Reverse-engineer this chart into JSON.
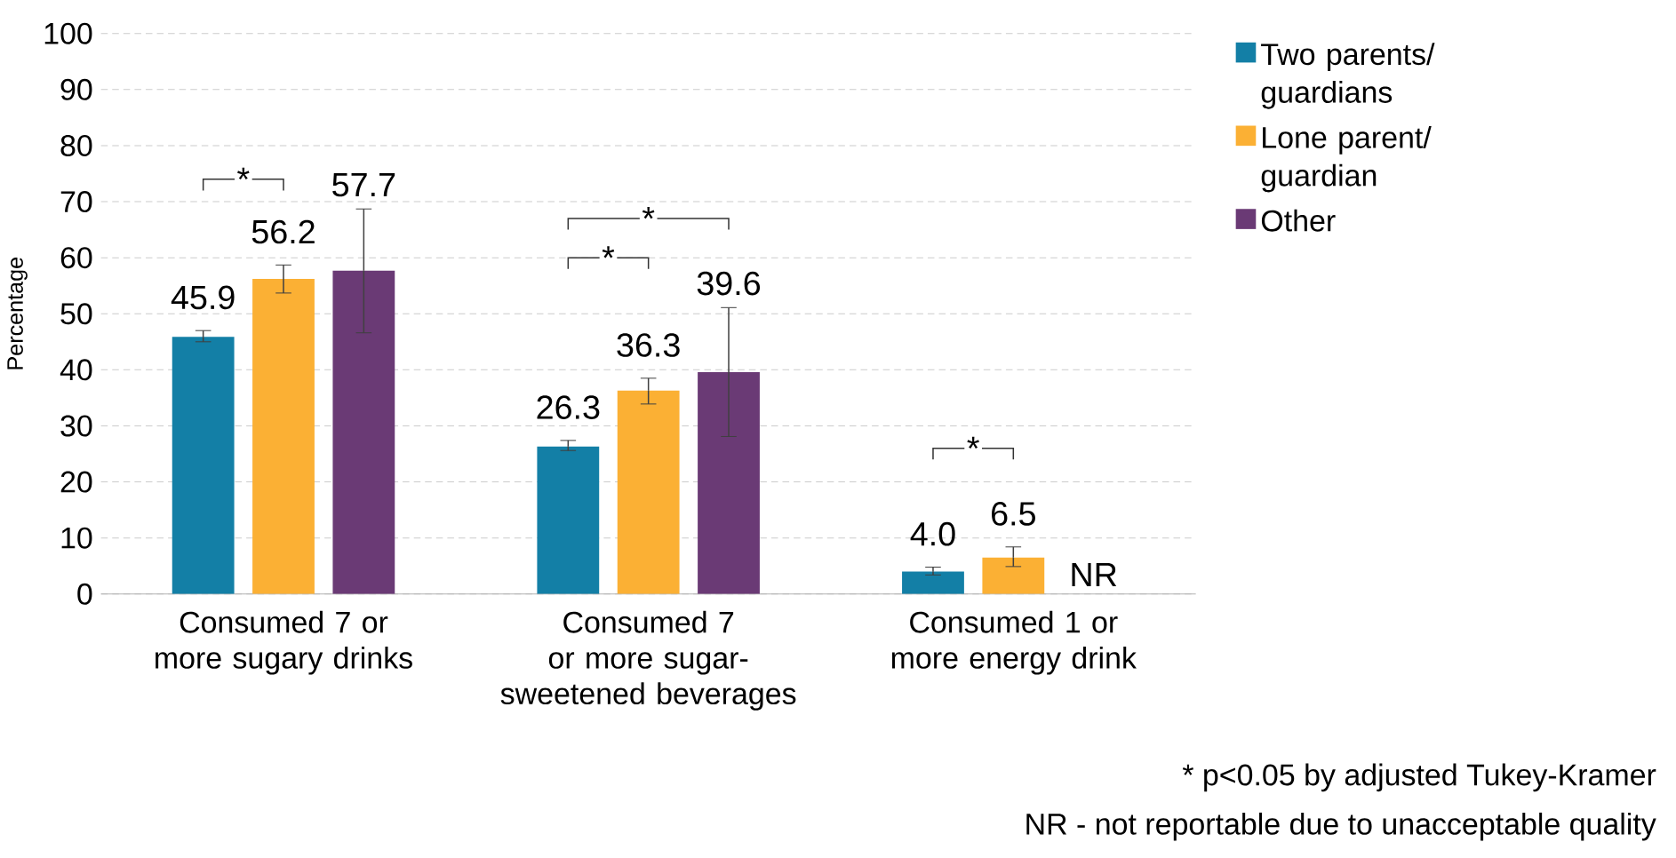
{
  "chart_data": {
    "type": "bar",
    "ylabel": "Percentage",
    "categories": [
      "Consumed 7 or more sugary drinks",
      "Consumed 7 or more sugar-sweetened beverages",
      "Consumed 1 or more energy drink"
    ],
    "series": [
      {
        "name": "Two parents/ guardians",
        "color": "#137fa6",
        "values": [
          45.9,
          26.3,
          4.0
        ],
        "errors": [
          [
            45.0,
            47.0
          ],
          [
            25.6,
            27.4
          ],
          [
            3.4,
            4.8
          ]
        ],
        "value_labels": [
          "45.9",
          "26.3",
          "4.0"
        ]
      },
      {
        "name": "Lone parent/ guardian",
        "color": "#fbb034",
        "values": [
          56.2,
          36.3,
          6.5
        ],
        "errors": [
          [
            53.7,
            58.7
          ],
          [
            33.9,
            38.5
          ],
          [
            4.9,
            8.4
          ]
        ],
        "value_labels": [
          "56.2",
          "36.3",
          "6.5"
        ]
      },
      {
        "name": "Other",
        "color": "#6a3a75",
        "values": [
          57.7,
          39.6,
          null
        ],
        "errors": [
          [
            46.6,
            68.7
          ],
          [
            28.1,
            51.1
          ],
          null
        ],
        "value_labels": [
          "57.7",
          "39.6",
          "NR"
        ]
      }
    ],
    "ylim": [
      0,
      100
    ],
    "yticks": [
      0,
      10,
      20,
      30,
      40,
      50,
      60,
      70,
      80,
      90,
      100
    ],
    "grid": "y",
    "legend": "right",
    "annotations": [
      "*",
      "*",
      "*",
      "*",
      "* p<0.05 by adjusted Tukey-Kramer",
      "NR - not reportable due to unacceptable quality"
    ]
  }
}
